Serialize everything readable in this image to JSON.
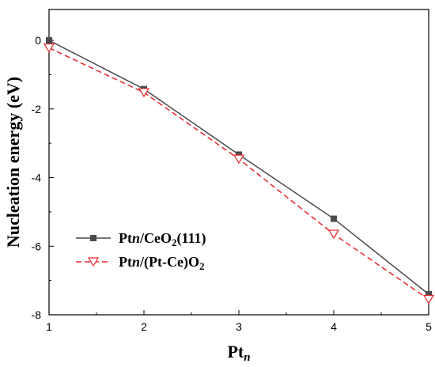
{
  "chart_data": {
    "type": "line",
    "title": "",
    "xlabel": "Pt",
    "xlabel_sub": "n",
    "ylabel": "Nucleation energy (eV)",
    "x": [
      1,
      2,
      3,
      4,
      5
    ],
    "xlim": [
      1,
      5
    ],
    "ylim": [
      -8,
      0.9
    ],
    "xticks": [
      "1",
      "2",
      "3",
      "4",
      "5"
    ],
    "yticks": [
      "0",
      "-2",
      "-4",
      "-6",
      "-8"
    ],
    "grid": false,
    "legend_position": "lower-left",
    "series": [
      {
        "name": "Ptn/CeO2(111)",
        "name_parts": [
          "Pt",
          "n",
          "/CeO",
          "2",
          "(111)"
        ],
        "values": [
          0,
          -1.42,
          -3.33,
          -5.2,
          -7.4
        ],
        "color": "#4a4a4a",
        "line": "solid",
        "marker": "square"
      },
      {
        "name": "Ptn/(Pt-Ce)O2",
        "name_parts": [
          "Pt",
          "n",
          "/(Pt-Ce)O",
          "2",
          ""
        ],
        "values": [
          -0.22,
          -1.52,
          -3.46,
          -5.65,
          -7.55
        ],
        "color": "#e8262a",
        "line": "dashed",
        "marker": "triangle-down-open"
      }
    ]
  }
}
